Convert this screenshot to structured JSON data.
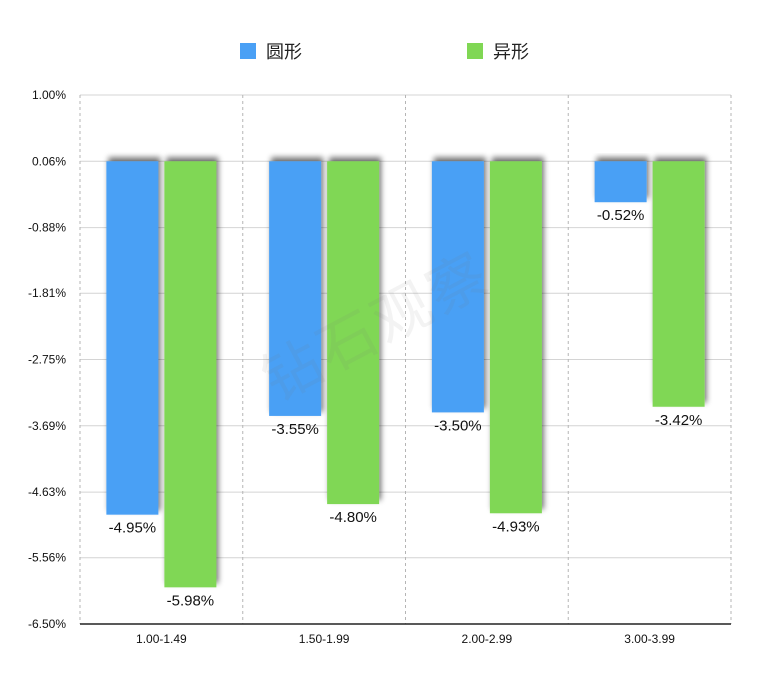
{
  "chart_data": {
    "type": "bar",
    "categories": [
      "1.00-1.49",
      "1.50-1.99",
      "2.00-2.99",
      "3.00-3.99"
    ],
    "series": [
      {
        "name": "圆形",
        "color": "#4aa0f5",
        "values": [
          -4.95,
          -3.55,
          -3.5,
          -0.52
        ],
        "labels": [
          "-4.95%",
          "-3.55%",
          "-3.50%",
          "-0.52%"
        ]
      },
      {
        "name": "异形",
        "color": "#80d754",
        "values": [
          -5.98,
          -4.8,
          -4.93,
          -3.42
        ],
        "labels": [
          "-5.98%",
          "-4.80%",
          "-4.93%",
          "-3.42%"
        ]
      }
    ],
    "ylim": [
      -6.5,
      1.0
    ],
    "yticks": [
      1.0,
      0.06,
      -0.88,
      -1.81,
      -2.75,
      -3.69,
      -4.63,
      -5.56,
      -6.5
    ],
    "ytick_labels": [
      "1.00%",
      "0.06%",
      "-0.88%",
      "-1.81%",
      "-2.75%",
      "-3.69%",
      "-4.63%",
      "-5.56%",
      "-6.50%"
    ],
    "grid": true,
    "legend": "top-center"
  },
  "watermark": "钻石观察"
}
